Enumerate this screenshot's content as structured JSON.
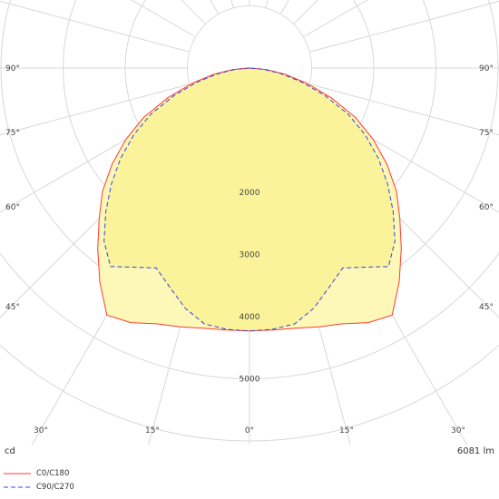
{
  "chart_data": {
    "type": "polar-luminous-intensity",
    "unit_label": "cd",
    "flux_label": "6081 lm",
    "radial_axis": {
      "max": 6000,
      "rings": [
        1000,
        2000,
        3000,
        4000,
        5000,
        6000
      ],
      "tick_labels": [
        "2000",
        "3000",
        "4000",
        "5000"
      ]
    },
    "angle_labels": {
      "left": [
        "90°",
        "75°",
        "60°",
        "45°"
      ],
      "right": [
        "90°",
        "75°",
        "60°",
        "45°"
      ],
      "bottom": [
        "30°",
        "15°",
        "0°",
        "15°",
        "30°"
      ]
    },
    "series": [
      {
        "name": "C0/C180",
        "color": "#ff3b30",
        "dash": false,
        "angles": [
          0,
          5,
          10,
          15,
          20,
          25,
          30,
          35,
          40,
          45,
          50,
          55,
          60,
          65,
          70,
          75,
          80,
          85,
          90
        ],
        "values": [
          4230,
          4230,
          4250,
          4310,
          4380,
          4520,
          4590,
          4200,
          3800,
          3420,
          3090,
          2700,
          2300,
          1880,
          1400,
          960,
          590,
          270,
          0
        ]
      },
      {
        "name": "C90/C270",
        "color": "#3344dd",
        "dash": true,
        "angles": [
          0,
          5,
          10,
          15,
          20,
          25,
          30,
          35,
          40,
          45,
          50,
          55,
          60,
          65,
          70,
          75,
          80,
          85,
          90
        ],
        "values": [
          4230,
          4220,
          4180,
          4000,
          3750,
          3550,
          3700,
          3900,
          3640,
          3270,
          2900,
          2530,
          2150,
          1750,
          1290,
          870,
          500,
          220,
          0
        ]
      }
    ]
  }
}
